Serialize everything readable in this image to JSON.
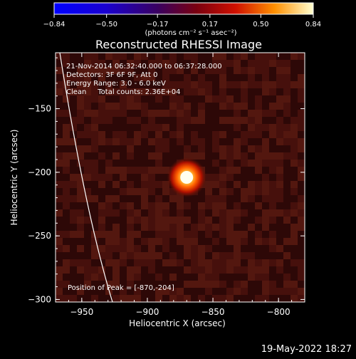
{
  "chart_data": {
    "type": "heatmap",
    "title": "Reconstructed RHESSI Image",
    "xlabel": "Heliocentric X (arcsec)",
    "ylabel": "Heliocentric Y (arcsec)",
    "xlim": [
      -970,
      -780
    ],
    "ylim": [
      -302,
      -106
    ],
    "xticks": [
      -950,
      -900,
      -850,
      -800
    ],
    "yticks": [
      -150,
      -200,
      -250,
      -300
    ],
    "colorbar": {
      "range": [
        -0.84,
        0.84
      ],
      "ticks": [
        "-0.84",
        "-0.50",
        "-0.17",
        "0.17",
        "0.50",
        "0.84"
      ],
      "unit": "(photons cm⁻² s⁻¹ asec⁻²)"
    },
    "peak": {
      "x": -870,
      "y": -204
    },
    "annotations": [
      "21-Nov-2014 06:32:40.000 to 06:37:28.000",
      "Detectors: 3F 6F 9F, Att 0",
      "Energy Range: 3.0 - 6.0 keV",
      "Clean     Total counts: 2.36E+04"
    ],
    "peak_label": "Position of Peak = [-870,-204]"
  },
  "footer": {
    "timestamp": "19-May-2022 18:27"
  },
  "colors": {
    "background": "#000000",
    "foreground": "#ffffff",
    "colormap": "hot"
  }
}
